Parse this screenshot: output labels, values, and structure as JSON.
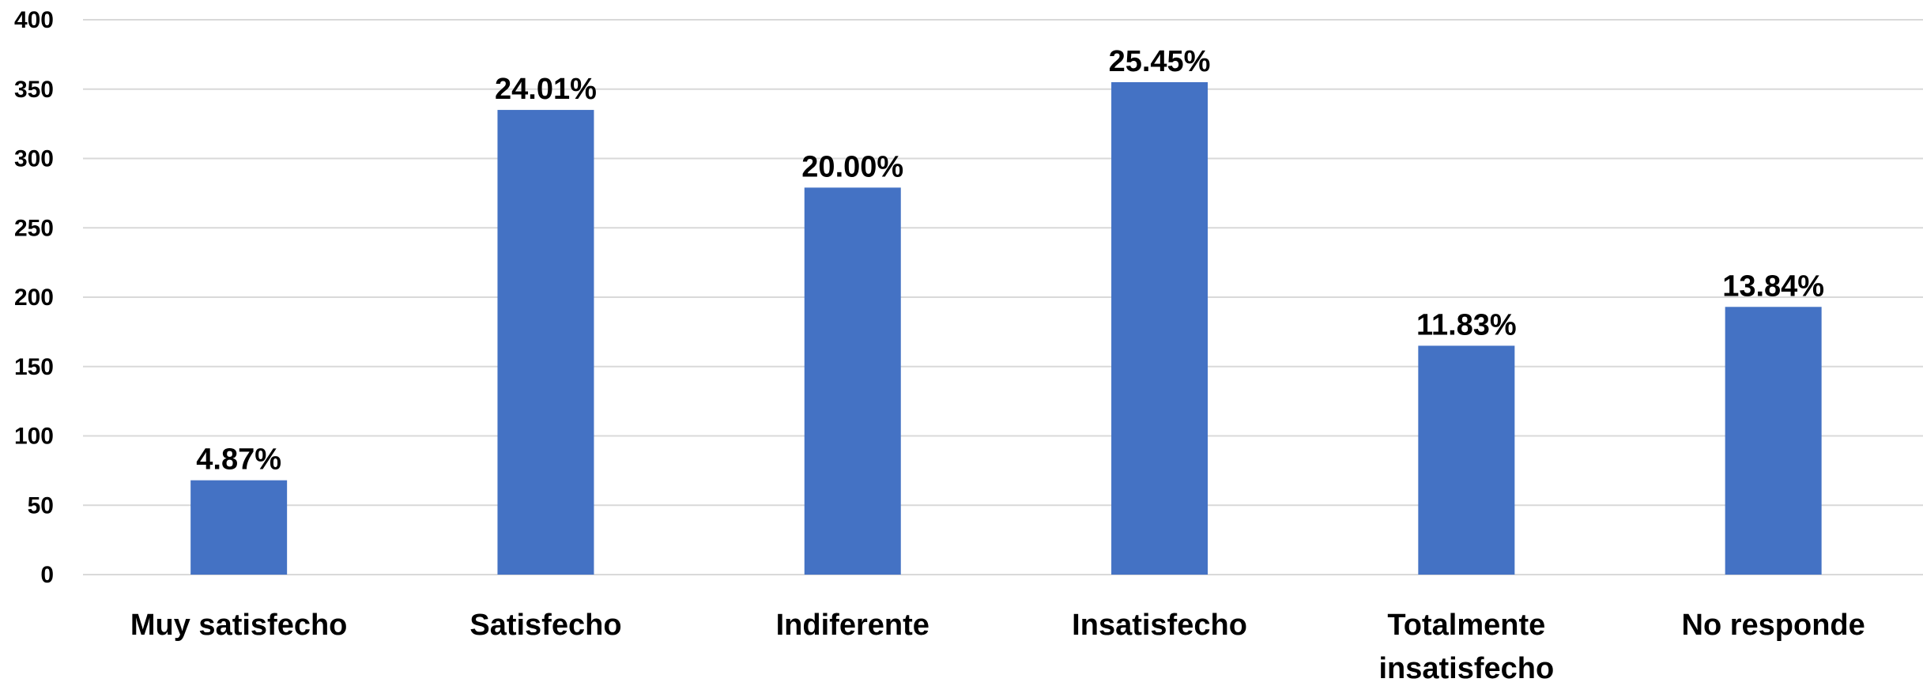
{
  "chart_data": {
    "type": "bar",
    "title": "",
    "xlabel": "",
    "ylabel": "",
    "categories": [
      "Muy satisfecho",
      "Satisfecho",
      "Indiferente",
      "Insatisfecho",
      "Totalmente insatisfecho",
      "No responde"
    ],
    "category_lines": [
      [
        "Muy satisfecho"
      ],
      [
        "Satisfecho"
      ],
      [
        "Indiferente"
      ],
      [
        "Insatisfecho"
      ],
      [
        "Totalmente",
        "insatisfecho"
      ],
      [
        "No responde"
      ]
    ],
    "values": [
      68,
      335,
      279,
      355,
      165,
      193
    ],
    "data_labels": [
      "4.87%",
      "24.01%",
      "20.00%",
      "25.45%",
      "11.83%",
      "13.84%"
    ],
    "ylim": [
      0,
      400
    ],
    "yticks": [
      0,
      50,
      100,
      150,
      200,
      250,
      300,
      350,
      400
    ],
    "grid": true,
    "legend": "none",
    "bar_color": "#4472C4",
    "grid_color": "#D9D9D9"
  }
}
